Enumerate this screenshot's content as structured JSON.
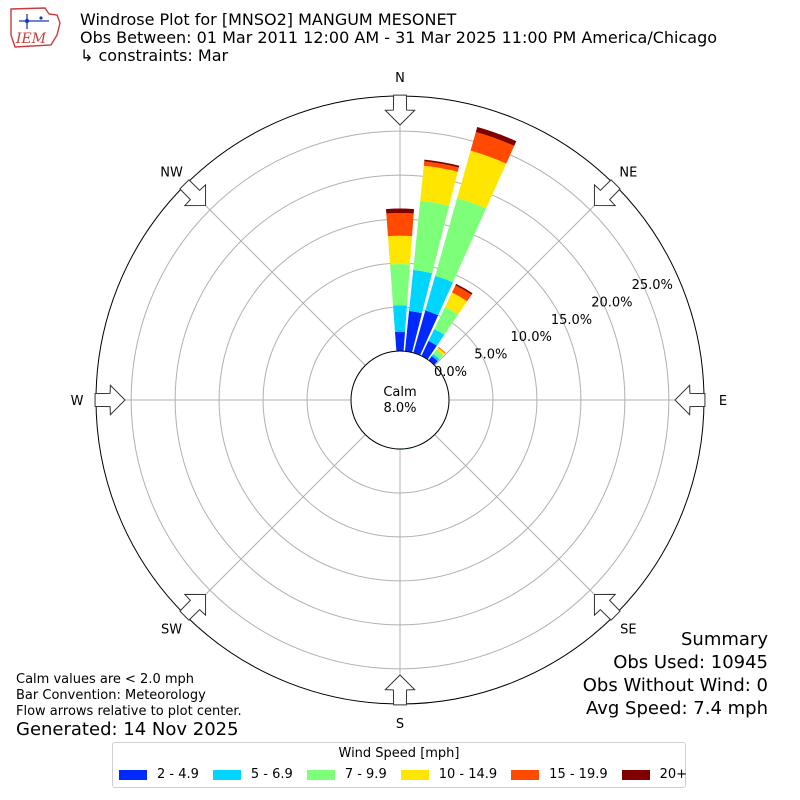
{
  "header": {
    "logo_text": "IEM",
    "title": "Windrose Plot for [MNSO2] MANGUM MESONET",
    "obs_between": "Obs Between: 01 Mar 2011 12:00 AM - 31 Mar 2025 11:00 PM America/Chicago",
    "constraints": "↳ constraints: Mar"
  },
  "notes": {
    "calm_note": "Calm values are < 2.0 mph",
    "bar_convention": "Bar Convention: Meteorology",
    "flow_arrows": "Flow arrows relative to plot center.",
    "generated": "Generated: 14 Nov 2025"
  },
  "summary": {
    "title": "Summary",
    "obs_used": "Obs Used: 10945",
    "obs_without_wind": "Obs Without Wind: 0",
    "avg_speed": "Avg Speed: 7.4 mph"
  },
  "legend": {
    "title": "Wind Speed [mph]"
  },
  "chart_data": {
    "type": "windrose",
    "title": "Windrose Plot for [MNSO2] MANGUM MESONET",
    "calm": {
      "label": "Calm",
      "value_text": "8.0%",
      "value": 8.0
    },
    "directions": [
      "N",
      "NE",
      "E",
      "SE",
      "S",
      "SW",
      "W",
      "NW"
    ],
    "radial_ticks": [
      0,
      5,
      10,
      15,
      20,
      25
    ],
    "radial_tick_labels": [
      "0.0%",
      "5.0%",
      "10.0%",
      "15.0%",
      "20.0%",
      "25.0%"
    ],
    "radial_max": 29,
    "bins": [
      {
        "label": "2 - 4.9",
        "color": "#0029ff"
      },
      {
        "label": "5 - 6.9",
        "color": "#00d5ff"
      },
      {
        "label": "7 - 9.9",
        "color": "#7dff7a"
      },
      {
        "label": "10 - 14.9",
        "color": "#ffe600"
      },
      {
        "label": "15 - 19.9",
        "color": "#ff4a00"
      },
      {
        "label": "20+",
        "color": "#800000"
      }
    ],
    "sectors": [
      {
        "direction_deg": 0,
        "values": [
          2.2,
          3.0,
          4.7,
          3.2,
          2.6,
          0.5
        ]
      },
      {
        "direction_deg": 10,
        "values": [
          4.6,
          4.7,
          7.9,
          4.0,
          0.5,
          0.2
        ]
      },
      {
        "direction_deg": 20,
        "values": [
          5.0,
          4.1,
          9.2,
          5.6,
          2.2,
          0.6
        ]
      },
      {
        "direction_deg": 30,
        "values": [
          1.9,
          1.5,
          2.8,
          1.8,
          0.9,
          0.2
        ]
      },
      {
        "direction_deg": 40,
        "values": [
          0.6,
          0.3,
          0.6,
          0.3,
          0.1,
          0.0
        ]
      },
      {
        "direction_deg": 170,
        "values": [
          0.04,
          0.03,
          0.03,
          0.0,
          0.0,
          0.0
        ]
      },
      {
        "direction_deg": 180,
        "values": [
          0.04,
          0.03,
          0.03,
          0.0,
          0.0,
          0.0
        ]
      }
    ]
  }
}
